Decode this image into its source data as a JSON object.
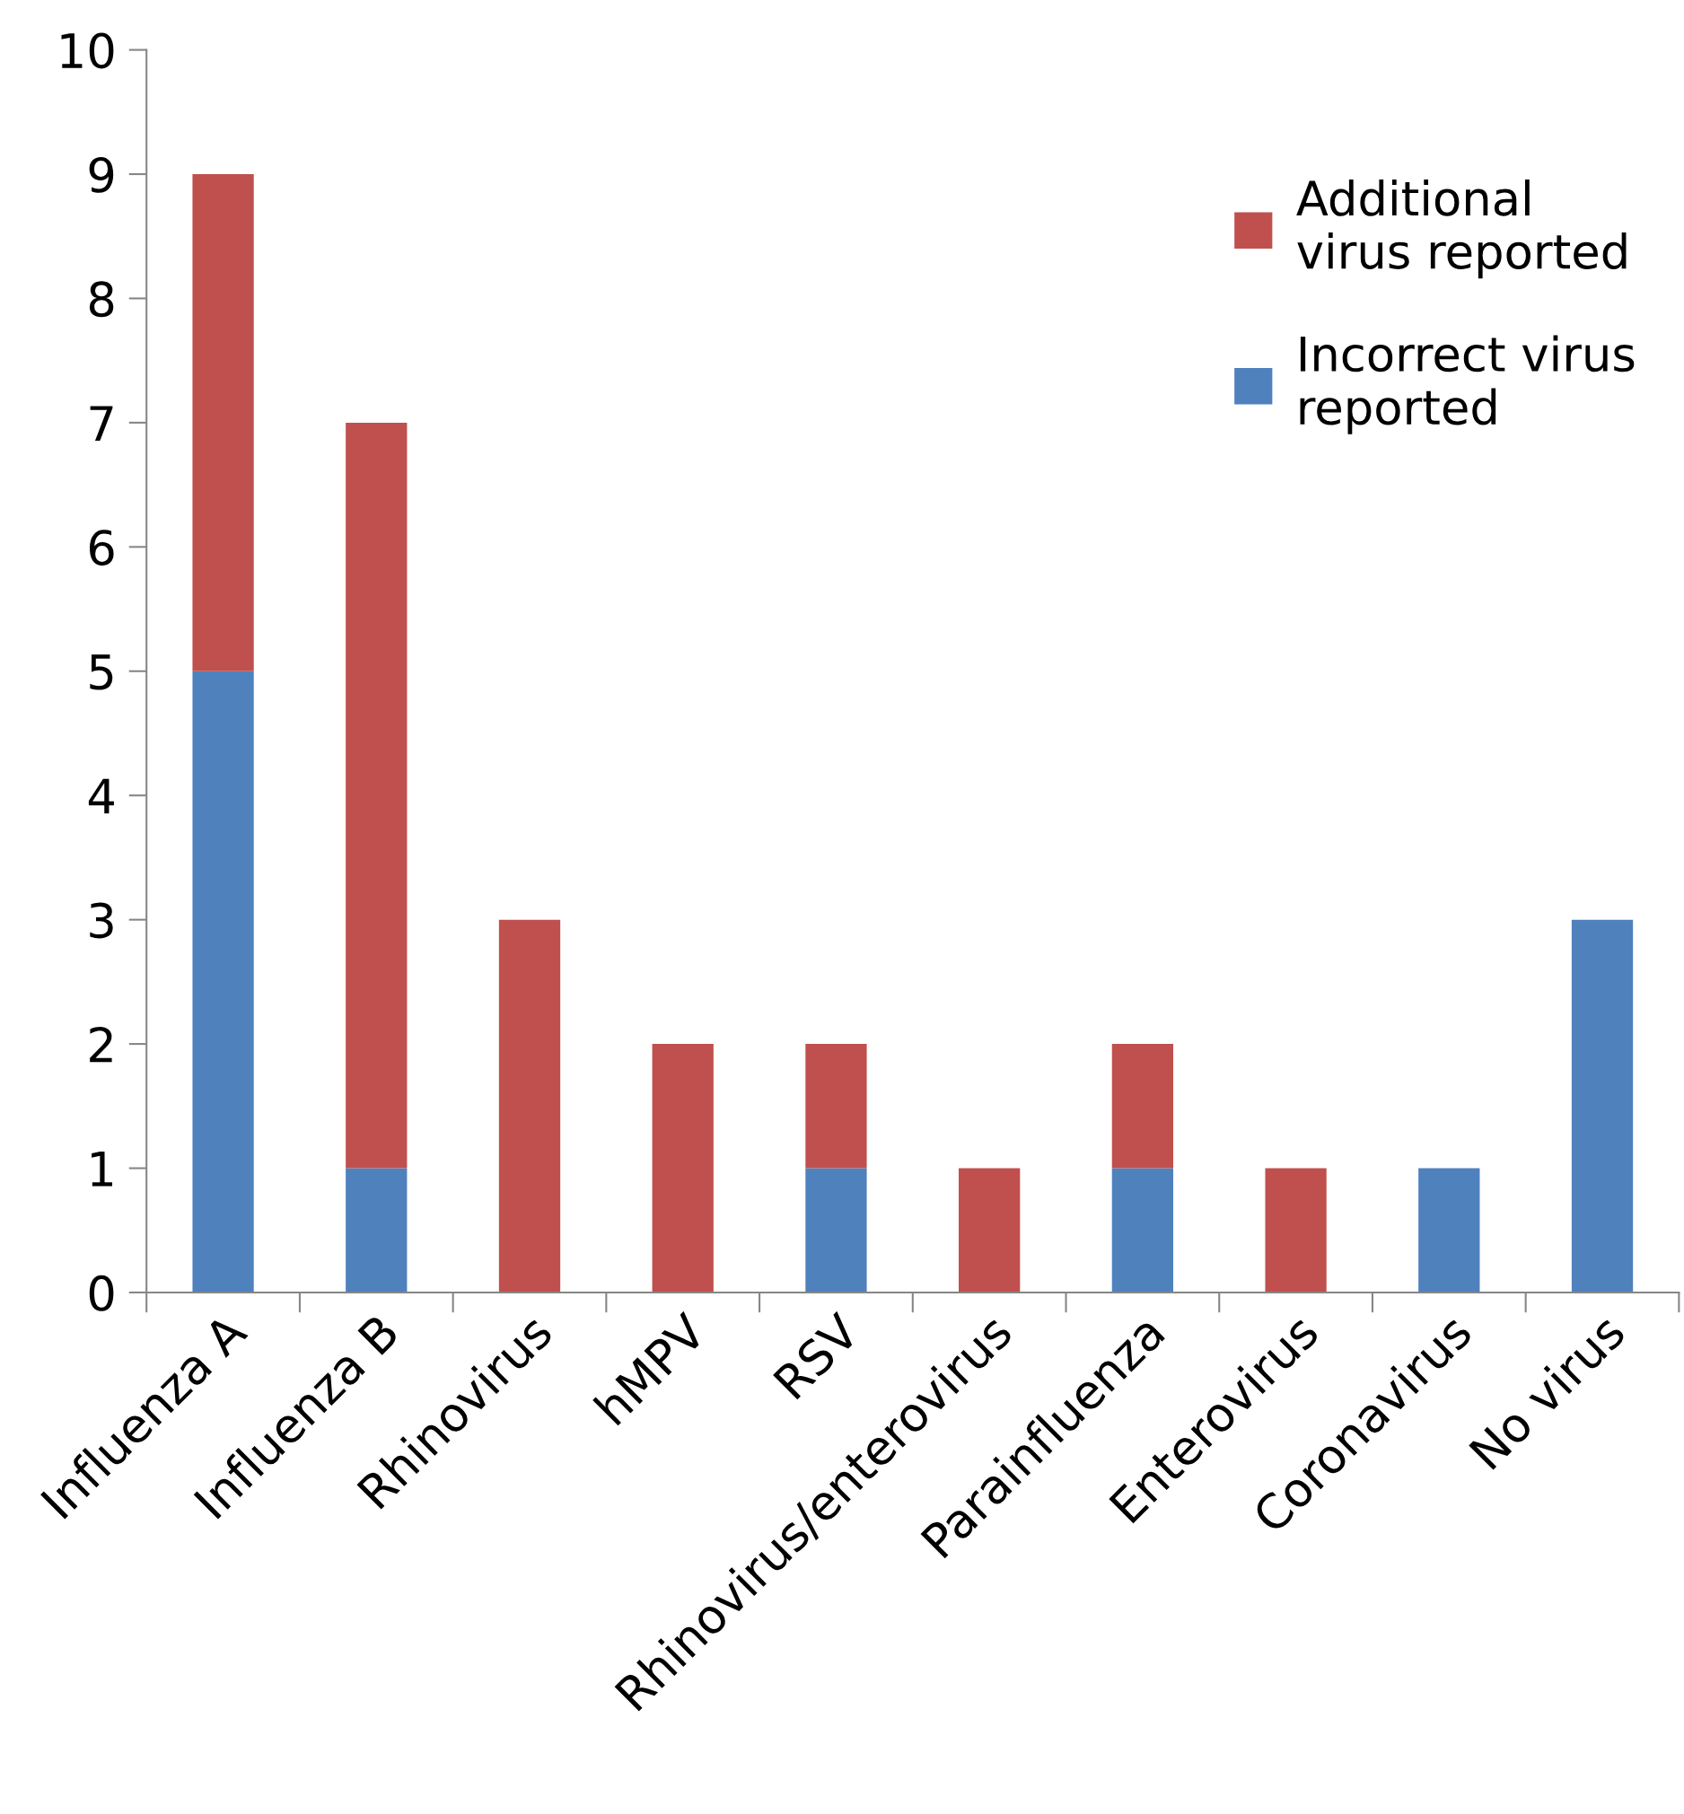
{
  "chart_data": {
    "type": "bar",
    "stacked": true,
    "categories": [
      "Influenza A",
      "Influenza B",
      "Rhinovirus",
      "hMPV",
      "RSV",
      "Rhinovirus/enterovirus",
      "Parainfluenza",
      "Enterovirus",
      "Coronavirus",
      "No virus"
    ],
    "series": [
      {
        "name": "Incorrect virus\nreported",
        "color": "#4f81bd",
        "values": [
          5,
          1,
          0,
          0,
          1,
          0,
          1,
          0,
          1,
          3
        ]
      },
      {
        "name": "Additional\nvirus reported",
        "color": "#c0504d",
        "values": [
          4,
          6,
          3,
          2,
          1,
          1,
          1,
          1,
          0,
          0
        ]
      }
    ],
    "ylim": [
      0,
      10
    ],
    "yticks": [
      0,
      1,
      2,
      3,
      4,
      5,
      6,
      7,
      8,
      9,
      10
    ],
    "grid": false,
    "legend": "top right"
  }
}
